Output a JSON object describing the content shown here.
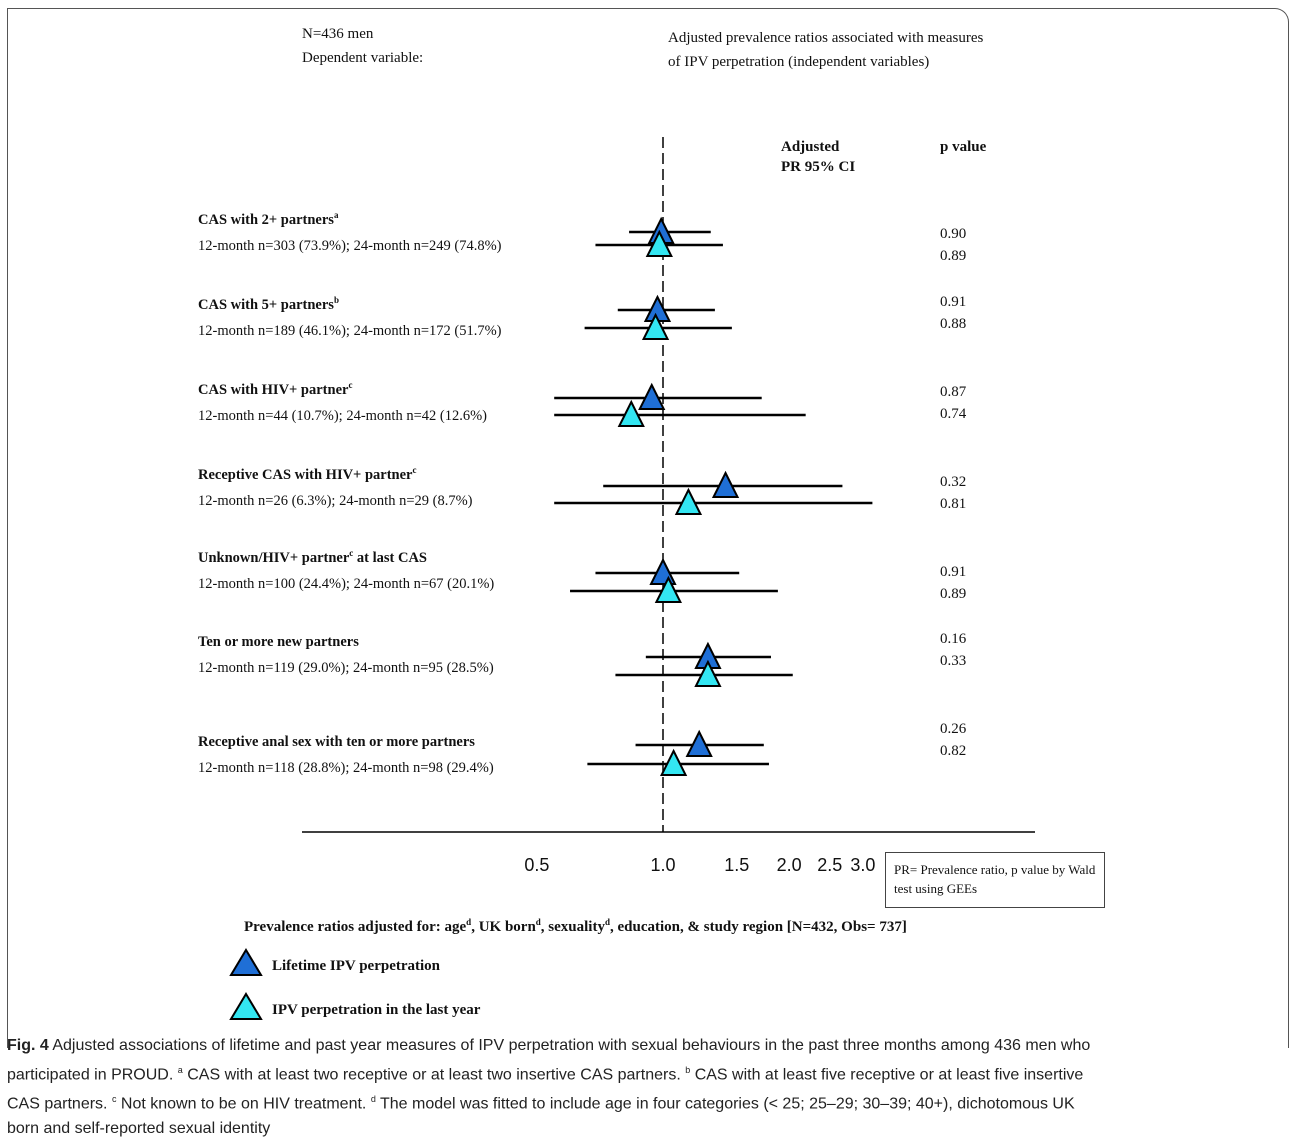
{
  "header": {
    "n_line": "N=436 men",
    "dep_line": "Dependent variable:",
    "title_line1": "Adjusted prevalence ratios associated with measures",
    "title_line2": "of IPV perpetration (independent variables)"
  },
  "columns": {
    "pr_line1": "Adjusted",
    "pr_line2": "PR 95% CI",
    "p_value": "p value"
  },
  "rows": [
    {
      "title": "CAS with 2+ partners",
      "sup": "a",
      "title_rest": "",
      "sub": "12-month n=303 (73.9%); 24-month n=249 (74.8%)",
      "p1": "0.90",
      "p2": "0.89"
    },
    {
      "title": "CAS with 5+ partners",
      "sup": "b",
      "title_rest": "",
      "sub": "12-month n=189 (46.1%); 24-month n=172 (51.7%)",
      "p1": "0.91",
      "p2": "0.88"
    },
    {
      "title": "CAS with HIV+ partner",
      "sup": "c",
      "title_rest": "",
      "sub": "12-month n=44 (10.7%); 24-month n=42 (12.6%)",
      "p1": "0.87",
      "p2": "0.74"
    },
    {
      "title": "Receptive CAS with HIV+ partner",
      "sup": "c",
      "title_rest": "",
      "sub": "12-month n=26 (6.3%); 24-month n=29 (8.7%)",
      "p1": "0.32",
      "p2": "0.81"
    },
    {
      "title": "Unknown/HIV+ partner",
      "sup": "c",
      "title_rest": " at last CAS",
      "sub": "12-month n=100 (24.4%); 24-month n=67 (20.1%)",
      "p1": "0.91",
      "p2": "0.89"
    },
    {
      "title": "Ten or more new partners",
      "sup": "",
      "title_rest": "",
      "sub": "12-month n=119 (29.0%); 24-month n=95 (28.5%)",
      "p1": "0.16",
      "p2": "0.33"
    },
    {
      "title": "Receptive anal sex with ten or more partners",
      "sup": "",
      "title_rest": "",
      "sub": "12-month n=118 (28.8%); 24-month n=98 (29.4%)",
      "p1": "0.26",
      "p2": "0.82"
    }
  ],
  "note": "PR= Prevalence ratio, p value by Wald test using GEEs",
  "adjusted_for": {
    "p1": "Prevalence ratios adjusted for: age",
    "p2": ", UK born",
    "p3": ", sexuality",
    "p4": ", education, & study region [N=432, Obs= 737]",
    "sup": "d"
  },
  "legend": {
    "lifetime": "Lifetime IPV perpetration",
    "last_year": "IPV perpetration in the last year"
  },
  "colors": {
    "lifetime": "#1f6fd6",
    "last_year": "#33e6f2",
    "lines": "#000000"
  },
  "caption": {
    "fig": "Fig. 4",
    "l1": "Adjusted associations of lifetime and past year measures of IPV perpetration with sexual behaviours in the past three months among 436 men who",
    "l2a": "participated in PROUD.",
    "sup_a": "a",
    "l2b": "CAS with at least two receptive or at least two insertive CAS partners.",
    "sup_b": "b",
    "l2c": "CAS with at least five receptive or at least five insertive",
    "l3a": "CAS partners.",
    "sup_c": "c",
    "l3b": "Not known to be on HIV treatment.",
    "sup_d": "d",
    "l3c": "The model was fitted to include age in four categories (< 25; 25–29; 30–39; 40+), dichotomous UK",
    "l4": "born and self-reported sexual identity"
  },
  "chart_data": {
    "type": "scatter",
    "scale": "log",
    "reference_line": 1.0,
    "x_ticks": [
      "0.5",
      "1.0",
      "1.5",
      "2.0",
      "2.5",
      "3.0"
    ],
    "x_tick_values": [
      0.5,
      1.0,
      1.5,
      2.0,
      2.5,
      3.0
    ],
    "xlim": [
      0.28,
      6.0
    ],
    "categories": [
      "CAS with 2+ partners",
      "CAS with 5+ partners",
      "CAS with HIV+ partner",
      "Receptive CAS with HIV+ partner",
      "Unknown/HIV+ partner at last CAS",
      "Ten or more new partners",
      "Receptive anal sex with ten or more partners"
    ],
    "series": [
      {
        "name": "Lifetime IPV perpetration",
        "estimates": [
          0.99,
          0.97,
          0.94,
          1.41,
          1.0,
          1.28,
          1.22
        ],
        "ci_low": [
          0.83,
          0.78,
          0.55,
          0.72,
          0.69,
          0.91,
          0.86
        ],
        "ci_high": [
          1.3,
          1.33,
          1.72,
          2.68,
          1.52,
          1.81,
          1.74
        ]
      },
      {
        "name": "IPV perpetration in the last year",
        "estimates": [
          0.98,
          0.96,
          0.84,
          1.15,
          1.03,
          1.28,
          1.06
        ],
        "ci_low": [
          0.69,
          0.65,
          0.55,
          0.55,
          0.6,
          0.77,
          0.66
        ],
        "ci_high": [
          1.39,
          1.46,
          2.19,
          3.16,
          1.88,
          2.04,
          1.79
        ]
      }
    ]
  }
}
